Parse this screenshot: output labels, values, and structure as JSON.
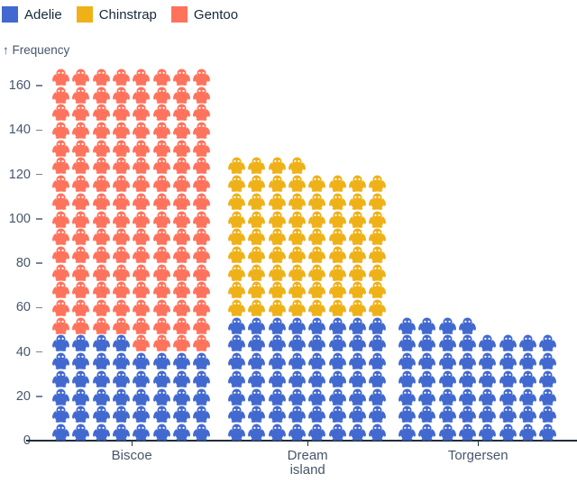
{
  "chart_data": {
    "type": "pictogram-bar",
    "title": "",
    "ylabel": "↑ Frequency",
    "icon": "penguin",
    "icon_unit": 1,
    "icons_per_row": 8,
    "categories": [
      "Biscoe",
      "Dream island",
      "Torgersen"
    ],
    "category_tick_lines": [
      [
        "Biscoe"
      ],
      [
        "Dream",
        "island"
      ],
      [
        "Torgersen"
      ]
    ],
    "series": [
      {
        "name": "Adelie",
        "color": "#4269d0",
        "values": [
          44,
          56,
          52
        ]
      },
      {
        "name": "Chinstrap",
        "color": "#efb118",
        "values": [
          0,
          68,
          0
        ]
      },
      {
        "name": "Gentoo",
        "color": "#ff725c",
        "values": [
          124,
          0,
          0
        ]
      }
    ],
    "totals": [
      168,
      124,
      52
    ],
    "y_ticks": [
      0,
      20,
      40,
      60,
      80,
      100,
      120,
      140,
      160
    ],
    "ylim": [
      0,
      170
    ],
    "grid": false,
    "legend_position": "top-left",
    "stack_order_bottom_to_top": [
      "Adelie",
      "Chinstrap",
      "Gentoo"
    ]
  },
  "legend": {
    "items": [
      {
        "label": "Adelie",
        "color": "#4269d0"
      },
      {
        "label": "Chinstrap",
        "color": "#efb118"
      },
      {
        "label": "Gentoo",
        "color": "#ff725c"
      }
    ]
  },
  "colors": {
    "background": "#ffffff",
    "axis_line": "#1e2e3e",
    "tick_text": "#46566b",
    "tick_dash": "#74849a",
    "legend_text": "#16283a",
    "eye": "#ffffff"
  }
}
